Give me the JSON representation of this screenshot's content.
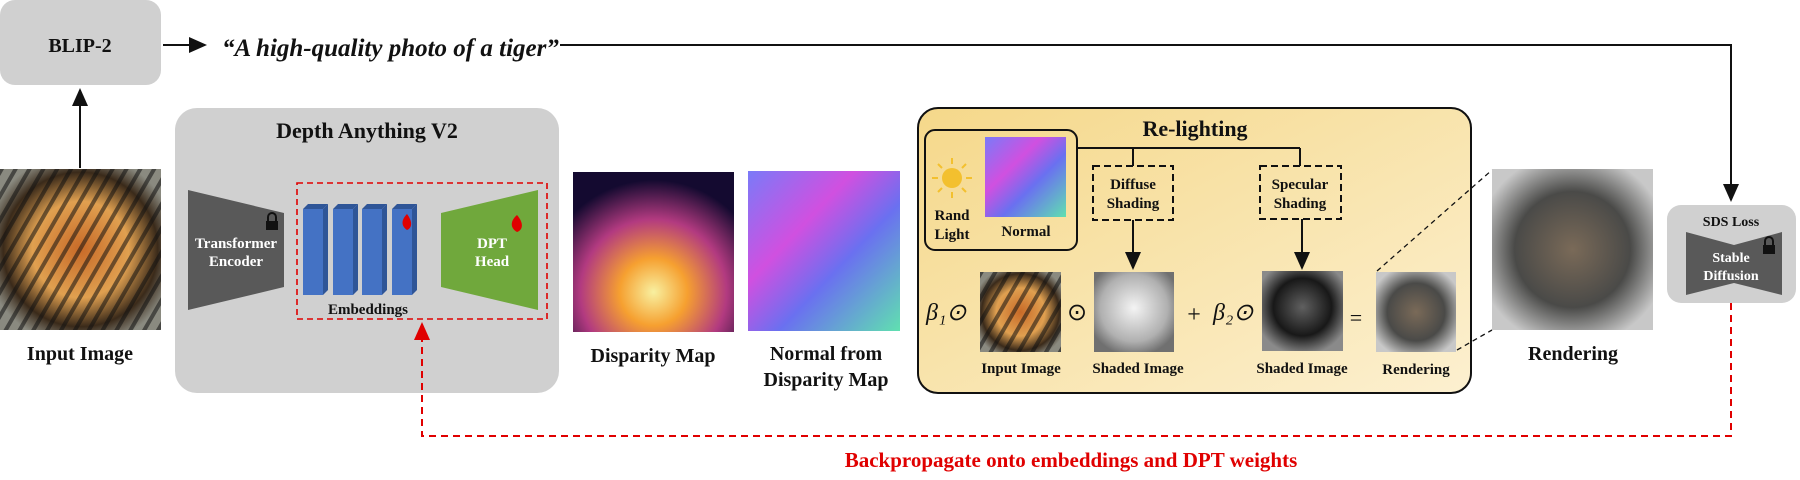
{
  "blip": {
    "label": "BLIP-2"
  },
  "caption": "“A high-quality photo of a tiger”",
  "input_image": {
    "label": "Input Image"
  },
  "depth_anything": {
    "title": "Depth Anything V2",
    "encoder": [
      "Transformer",
      "Encoder"
    ],
    "embeddings": "Embeddings",
    "dpt": [
      "DPT",
      "Head"
    ]
  },
  "disparity": {
    "label": "Disparity Map"
  },
  "normal_from": {
    "label": [
      "Normal from",
      "Disparity Map"
    ]
  },
  "relighting": {
    "title": "Re-lighting",
    "rand_light": [
      "Rand",
      "Light"
    ],
    "normal": "Normal",
    "diffuse": [
      "Diffuse",
      "Shading"
    ],
    "specular": [
      "Specular",
      "Shading"
    ],
    "beta1": "β₁⊙",
    "odot": "⊙",
    "plus": "+",
    "beta2": "β₂⊙",
    "equals": "=",
    "row_labels": [
      "Input Image",
      "Shaded Image",
      "Shaded Image",
      "Rendering"
    ]
  },
  "rendering": {
    "label": "Rendering"
  },
  "sds": {
    "title": "SDS Loss",
    "model": [
      "Stable",
      "Diffusion"
    ]
  },
  "backprop": "Backpropagate onto embeddings and DPT weights",
  "colors": {
    "gray_box": "#d0d0d0",
    "encoder": "#595959",
    "embedding": "#4472c4",
    "dpt": "#70a83c",
    "relight_top": "#f5d88a",
    "relight_bottom": "#fcf0d0",
    "backprop": "#e00000",
    "flame": "#e00000",
    "sun": "#f3c02e"
  },
  "icons": {
    "lock": "lock-icon",
    "flame": "flame-icon",
    "sun": "sun-icon"
  }
}
